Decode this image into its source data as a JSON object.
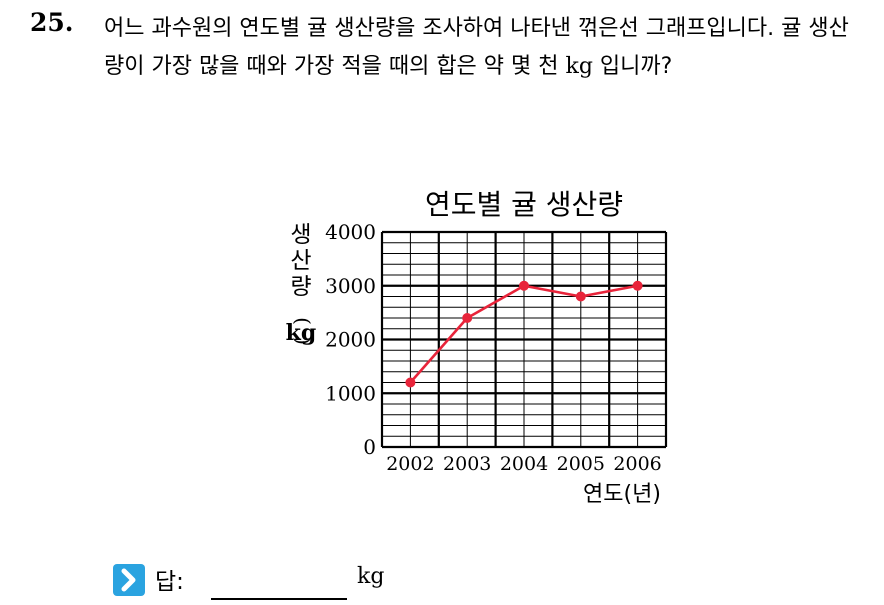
{
  "question": {
    "number": "25.",
    "text_before_unit": "어느 과수원의 연도별 귤 생산량을 조사하여 나타낸 꺾은선 그래프입니다. 귤 생산량이 가장 많을 때와 가장 적을 때의 합은 약 몇 천 ",
    "unit": "kg",
    "text_after_unit": " 입니까?"
  },
  "answer": {
    "label": "답:",
    "unit": "kg",
    "icon": "chevron-right-icon",
    "icon_color": "#2aa3e0"
  },
  "chart_data": {
    "type": "line",
    "title": "연도별 귤 생산량",
    "xlabel": "연도(년)",
    "ylabel": [
      "생",
      "산",
      "량",
      "(",
      "kg",
      ")"
    ],
    "categories": [
      "2002",
      "2003",
      "2004",
      "2005",
      "2006"
    ],
    "series": [
      {
        "values": [
          1200,
          2400,
          3000,
          2800,
          3000
        ],
        "color": "#e8243a"
      }
    ],
    "ylim": [
      0,
      4000
    ],
    "yticks": [
      "0",
      "1000",
      "2000",
      "3000",
      "4000"
    ],
    "minor_step": 200,
    "grid": true
  }
}
